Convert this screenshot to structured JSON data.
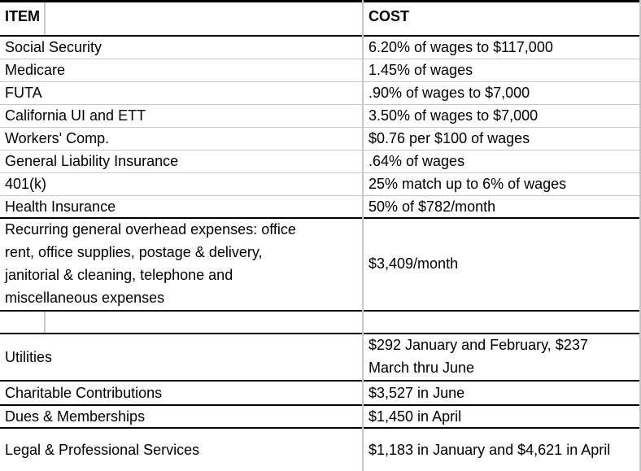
{
  "headers": {
    "item": "ITEM",
    "cost": "COST"
  },
  "rows": [
    {
      "item": "Social Security",
      "cost": "6.20% of wages to $117,000"
    },
    {
      "item": "Medicare",
      "cost": "1.45% of wages"
    },
    {
      "item": "FUTA",
      "cost": ".90% of wages to $7,000"
    },
    {
      "item": "California UI and ETT",
      "cost": "3.50% of wages to $7,000"
    },
    {
      "item": "Workers' Comp.",
      "cost": "$0.76 per $100 of wages"
    },
    {
      "item": "General Liability Insurance",
      "cost": ".64% of wages"
    },
    {
      "item": "401(k)",
      "cost": "25% match up to 6% of wages"
    },
    {
      "item": "Health Insurance",
      "cost": "50% of $782/month"
    }
  ],
  "overhead": {
    "item_lines": [
      "Recurring general overhead expenses: office",
      "rent, office supplies, postage & delivery,",
      "janitorial & cleaning, telephone and",
      "miscellaneous expenses"
    ],
    "cost": "$3,409/month"
  },
  "rows2": [
    {
      "item": "Utilities",
      "cost_lines": [
        "$292 January and February, $237",
        "March thru June"
      ]
    },
    {
      "item": "Charitable Contributions",
      "cost": "$3,527 in June"
    },
    {
      "item": "Dues & Memberships",
      "cost": "$1,450 in April"
    },
    {
      "item": "Legal & Professional Services",
      "cost": "$1,183 in January and $4,621 in April"
    }
  ]
}
